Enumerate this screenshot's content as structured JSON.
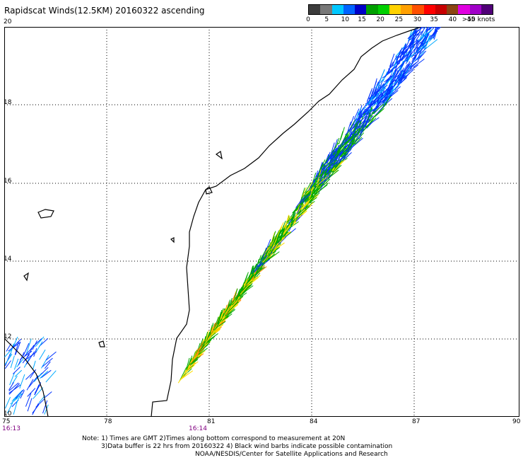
{
  "title": "Rapidscat Winds(12.5KM) 20160322 ascending",
  "legend": {
    "labels": [
      "0",
      "5",
      "10",
      "15",
      "20",
      "25",
      "30",
      "35",
      "40",
      "45",
      ">50 knots"
    ],
    "colors": [
      "#3c3c3c",
      "#787878",
      "#00c8ff",
      "#0064ff",
      "#0000c8",
      "#00a000",
      "#00d000",
      "#ffd200",
      "#ffa000",
      "#ff5000",
      "#ff0000",
      "#c80000",
      "#8b4513",
      "#e000e0",
      "#a000c8",
      "#500078"
    ]
  },
  "axes": {
    "lon_labels": [
      "75",
      "78",
      "81",
      "84",
      "87",
      "90"
    ],
    "lat_labels": [
      "20",
      "18",
      "16",
      "14",
      "12",
      "10"
    ]
  },
  "times": {
    "left": "16:13",
    "mid": "16:14"
  },
  "notes": {
    "line1": "Note: 1) Times are GMT 2)Times along bottom correspond to measurement at 20N",
    "line2": "3)Data buffer is 22 hrs from 20160322 4) Black wind barbs indicate possible contamination",
    "line3": "NOAA/NESDIS/Center for Satellite Applications and Research"
  },
  "colors": {
    "coast": "#000000",
    "grid": "#000000",
    "wind_10_15": "#0033ff",
    "wind_5_10": "#00aaff",
    "wind_15_20": "#00aa00",
    "wind_20_25": "#ffdd00",
    "wind_25_30": "#ff8800"
  }
}
